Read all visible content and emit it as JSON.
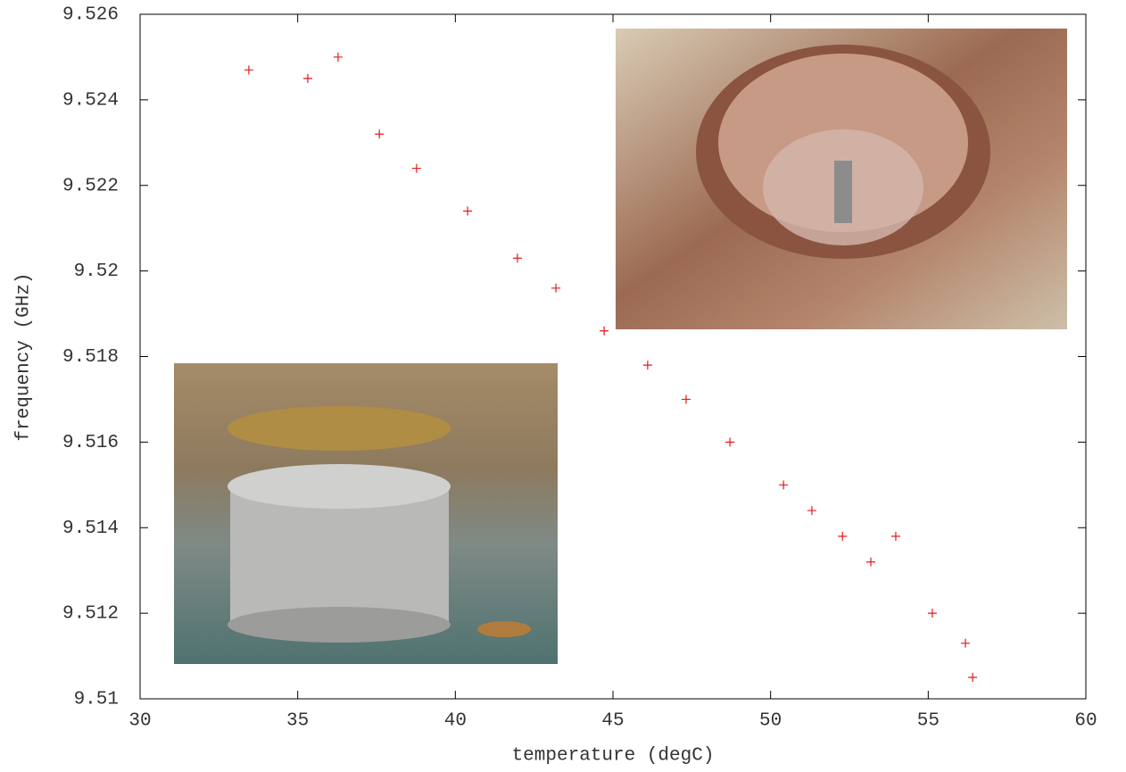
{
  "chart_data": {
    "type": "scatter",
    "xlabel": "temperature (degC)",
    "ylabel": "frequency (GHz)",
    "xlim": [
      30,
      60
    ],
    "xticks": [
      30,
      35,
      40,
      45,
      50,
      55,
      60
    ],
    "ylim": [
      9.51,
      9.526
    ],
    "yticks": [
      9.51,
      9.512,
      9.514,
      9.516,
      9.518,
      9.52,
      9.522,
      9.524,
      9.526
    ],
    "grid": false,
    "series": [
      {
        "color": "#e41a1c",
        "marker": "+",
        "x": [
          33.45,
          35.32,
          36.28,
          37.59,
          38.77,
          40.39,
          41.97,
          43.19,
          44.72,
          46.1,
          47.32,
          48.71,
          50.41,
          51.31,
          52.28,
          53.18,
          53.97,
          55.13,
          56.18,
          56.41
        ],
        "values": [
          9.5247,
          9.5245,
          9.525,
          9.5232,
          9.5224,
          9.5214,
          9.5203,
          9.5196,
          9.5186,
          9.5178,
          9.517,
          9.516,
          9.515,
          9.5144,
          9.5138,
          9.5132,
          9.5138,
          9.512,
          9.5113,
          9.5105
        ]
      }
    ]
  }
}
